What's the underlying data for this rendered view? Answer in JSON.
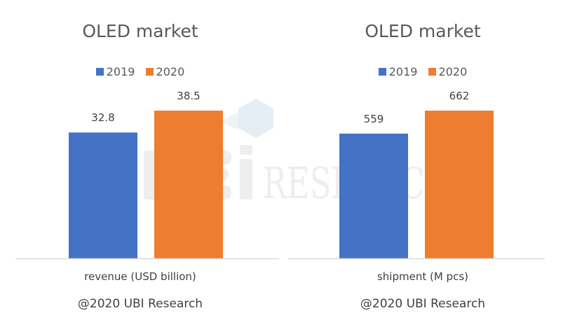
{
  "colors": {
    "2019": "#4472C4",
    "2020": "#ED7D31",
    "axis": "#D9D9D9",
    "text": "#595959"
  },
  "watermark_text": "UBi RESEARCH",
  "chart_data": [
    {
      "type": "bar",
      "title": "OLED market",
      "xlabel": "revenue (USD billion)",
      "credit": "@2020 UBI Research",
      "legend_position": "top",
      "grid": false,
      "series": [
        {
          "name": "2019",
          "values": [
            32.8
          ]
        },
        {
          "name": "2020",
          "values": [
            38.5
          ]
        }
      ],
      "data_labels": [
        "32.8",
        "38.5"
      ]
    },
    {
      "type": "bar",
      "title": "OLED market",
      "xlabel": "shipment (M pcs)",
      "credit": "@2020 UBI Research",
      "legend_position": "top",
      "grid": false,
      "series": [
        {
          "name": "2019",
          "values": [
            559
          ]
        },
        {
          "name": "2020",
          "values": [
            662
          ]
        }
      ],
      "data_labels": [
        "559",
        "662"
      ]
    }
  ]
}
